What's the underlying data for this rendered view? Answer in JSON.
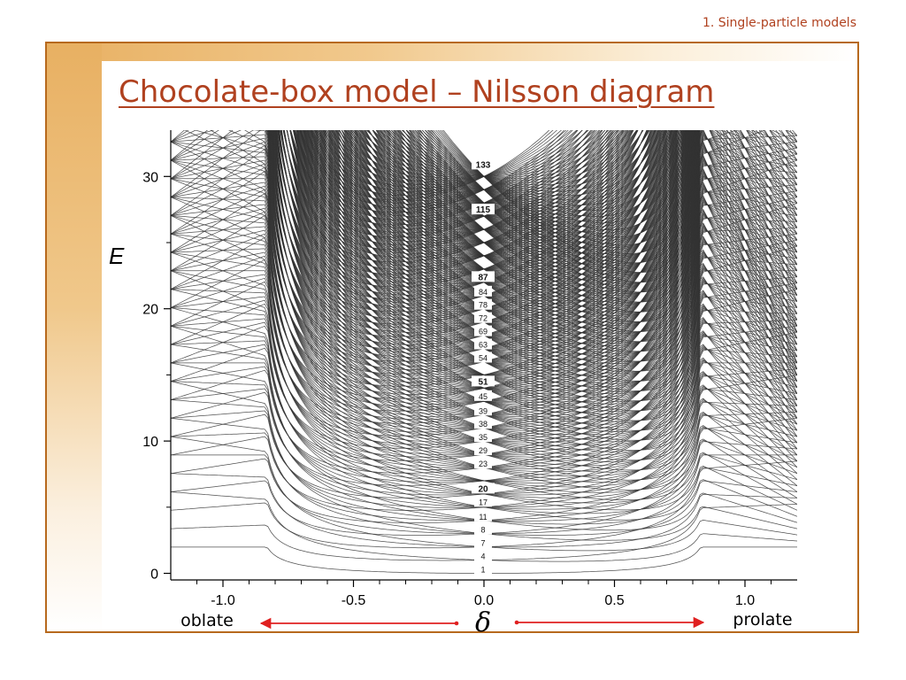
{
  "header": {
    "section": "1. Single-particle models"
  },
  "slide": {
    "title": "Chocolate-box model – Nilsson diagram"
  },
  "chart_data": {
    "type": "line",
    "title": "",
    "xlabel": "δ",
    "ylabel": "E",
    "xlim": [
      -1.2,
      1.2
    ],
    "ylim": [
      -0.5,
      33.5
    ],
    "x_ticks": [
      {
        "value": -1.0,
        "label": "-1.0"
      },
      {
        "value": -0.5,
        "label": "-0.5"
      },
      {
        "value": 0.0,
        "label": "0.0"
      },
      {
        "value": 0.5,
        "label": "0.5"
      },
      {
        "value": 1.0,
        "label": "1.0"
      }
    ],
    "y_ticks": [
      {
        "value": 0,
        "label": "0"
      },
      {
        "value": 10,
        "label": "10"
      },
      {
        "value": 20,
        "label": "20"
      },
      {
        "value": 30,
        "label": "30"
      }
    ],
    "magic_numbers": [
      {
        "label": "1",
        "energy": 0.3,
        "bold": false
      },
      {
        "label": "4",
        "energy": 1.3,
        "bold": false
      },
      {
        "label": "7",
        "energy": 2.3,
        "bold": false
      },
      {
        "label": "8",
        "energy": 3.3,
        "bold": false
      },
      {
        "label": "11",
        "energy": 4.3,
        "bold": false
      },
      {
        "label": "17",
        "energy": 5.4,
        "bold": false
      },
      {
        "label": "20",
        "energy": 6.4,
        "bold": true
      },
      {
        "label": "23",
        "energy": 8.3,
        "bold": false
      },
      {
        "label": "29",
        "energy": 9.3,
        "bold": false
      },
      {
        "label": "35",
        "energy": 10.3,
        "bold": false
      },
      {
        "label": "38",
        "energy": 11.3,
        "bold": false
      },
      {
        "label": "39",
        "energy": 12.3,
        "bold": false
      },
      {
        "label": "45",
        "energy": 13.4,
        "bold": false
      },
      {
        "label": "51",
        "energy": 14.5,
        "bold": true
      },
      {
        "label": "54",
        "energy": 16.3,
        "bold": false
      },
      {
        "label": "63",
        "energy": 17.3,
        "bold": false
      },
      {
        "label": "69",
        "energy": 18.3,
        "bold": false
      },
      {
        "label": "72",
        "energy": 19.3,
        "bold": false
      },
      {
        "label": "78",
        "energy": 20.3,
        "bold": false
      },
      {
        "label": "84",
        "energy": 21.3,
        "bold": false
      },
      {
        "label": "87",
        "energy": 22.4,
        "bold": true
      },
      {
        "label": "115",
        "energy": 27.5,
        "bold": true
      },
      {
        "label": "133",
        "energy": 30.9,
        "bold": true
      }
    ],
    "deformation_labels": {
      "left": "oblate",
      "right": "prolate"
    },
    "arrow_color": "#e02020",
    "line_color": "#333333"
  }
}
